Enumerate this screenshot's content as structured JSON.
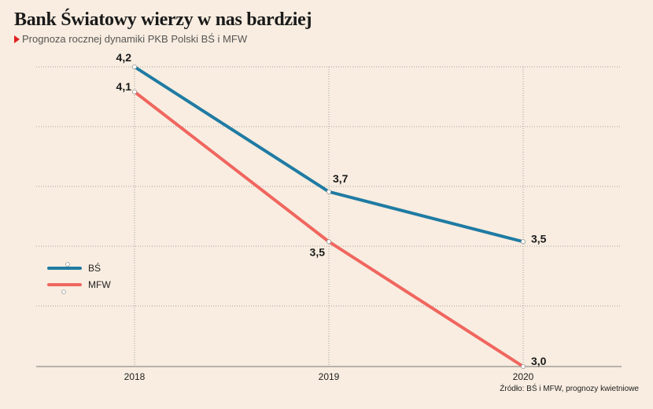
{
  "title": "Bank Światowy wierzy w nas bardziej",
  "subtitle": "Prognoza rocznej dynamiki PKB Polski BŚ i MFW",
  "source": "Źródło: BŚ i MFW, prognozy kwietniowe",
  "colors": {
    "bs": "#1f7ba3",
    "mfw": "#f0665f",
    "background": "#f8ede0",
    "grid": "#8a8a8a"
  },
  "chart_data": {
    "type": "line",
    "x": [
      "2018",
      "2019",
      "2020"
    ],
    "series": [
      {
        "name": "BŚ",
        "values": [
          4.2,
          3.7,
          3.5
        ],
        "labels": [
          "4,2",
          "3,7",
          "3,5"
        ]
      },
      {
        "name": "MFW",
        "values": [
          4.1,
          3.5,
          3.0
        ],
        "labels": [
          "4,1",
          "3,5",
          "3,0"
        ]
      }
    ],
    "ylim": [
      3.0,
      4.2
    ],
    "grid": true,
    "legend": "left"
  }
}
